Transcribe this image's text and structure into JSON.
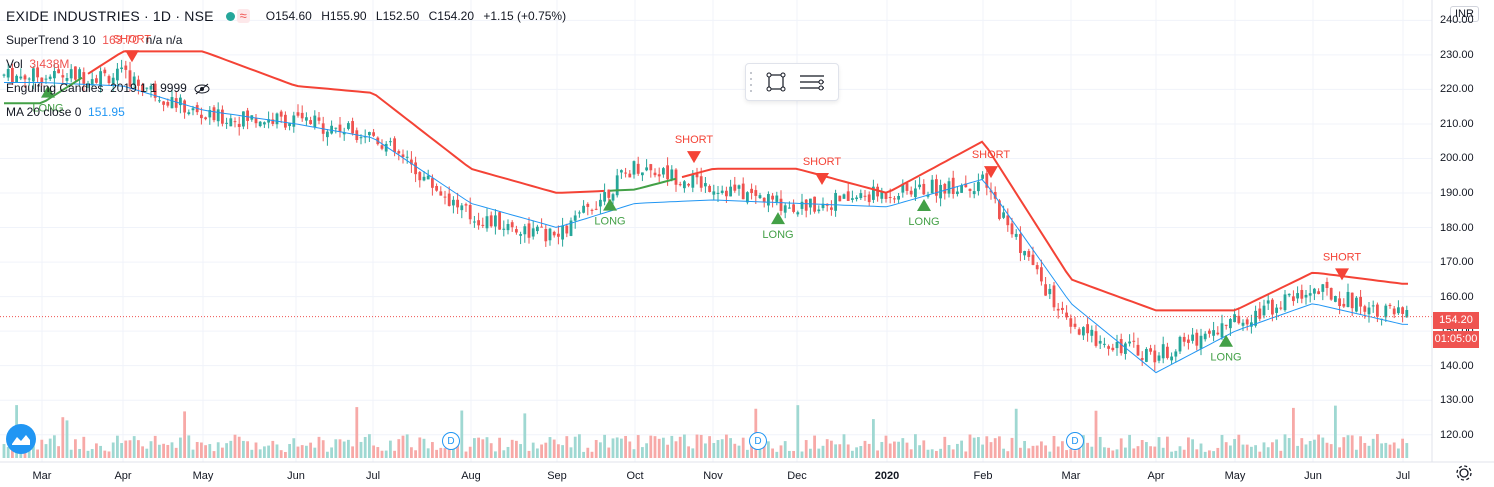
{
  "header": {
    "symbol": "EXIDE INDUSTRIES · 1D · NSE",
    "open": "O154.60",
    "high": "H155.90",
    "low": "L152.50",
    "close": "C154.20",
    "change": "+1.15 (+0.75%)"
  },
  "indicators": {
    "supertrend": {
      "name": "SuperTrend 3 10",
      "value": "163.70",
      "extra": "n/a n/a"
    },
    "volume": {
      "name": "Vol",
      "value": "3.438M"
    },
    "engulfing": {
      "name": "Engulfing Candles",
      "value": "2019 1 1 9999"
    },
    "ma": {
      "name": "MA 20 close 0",
      "value": "151.95"
    }
  },
  "price_axis": {
    "currency": "INR",
    "ticks": [
      "240.00",
      "230.00",
      "220.00",
      "210.00",
      "200.00",
      "190.00",
      "180.00",
      "170.00",
      "160.00",
      "150.00",
      "140.00",
      "130.00",
      "120.00"
    ],
    "last_price": "154.20",
    "countdown": "01:05:00"
  },
  "time_axis": {
    "labels": [
      "Mar",
      "Apr",
      "May",
      "Jun",
      "Jul",
      "Aug",
      "Sep",
      "Oct",
      "Nov",
      "Dec",
      "2020",
      "Feb",
      "Mar",
      "Apr",
      "May",
      "Jun",
      "Jul"
    ]
  },
  "dividend_marks": [
    "D",
    "D",
    "D"
  ],
  "toolbar": {
    "rect_tool": "rectangle-tool-icon",
    "menu_tool": "lines-menu-icon"
  },
  "colors": {
    "up": "#26a69a",
    "down": "#ef5350",
    "supertrend_up": "#43a047",
    "supertrend_down": "#f44336",
    "ma": "#2196f3"
  },
  "chart_data": {
    "type": "candlestick",
    "title": "EXIDE INDUSTRIES · 1D · NSE",
    "ylim": [
      115,
      243
    ],
    "series": [
      {
        "name": "price",
        "x": [
          "Mar",
          "Apr",
          "May",
          "Jun",
          "Jul",
          "Aug",
          "Sep",
          "Oct",
          "Nov",
          "Dec",
          "2020",
          "Feb",
          "Mar",
          "Apr",
          "May",
          "Jun",
          "Jul"
        ],
        "values": [
          224,
          224,
          212,
          211,
          207,
          183,
          177,
          198,
          192,
          186,
          190,
          193,
          150,
          143,
          153,
          162,
          154.2
        ]
      },
      {
        "name": "SuperTrend 3 10",
        "x": [
          "Mar",
          "Apr",
          "May",
          "Jun",
          "Jul",
          "Aug",
          "Sep",
          "Oct",
          "Nov",
          "Dec",
          "2020",
          "Feb",
          "Mar",
          "Apr",
          "May",
          "Jun",
          "Jul"
        ],
        "values": [
          216,
          231,
          231,
          221,
          219,
          197,
          190,
          191,
          197,
          197,
          190,
          205,
          165,
          156,
          156,
          167,
          163.7
        ]
      },
      {
        "name": "MA 20 close 0",
        "x": [
          "Mar",
          "Apr",
          "May",
          "Jun",
          "Jul",
          "Aug",
          "Sep",
          "Oct",
          "Nov",
          "Dec",
          "2020",
          "Feb",
          "Mar",
          "Apr",
          "May",
          "Jun",
          "Jul"
        ],
        "values": [
          222,
          221,
          214,
          210,
          206,
          187,
          180,
          187,
          188,
          187,
          186,
          194,
          158,
          138,
          150,
          158,
          151.95
        ]
      }
    ],
    "signals": [
      {
        "label": "LONG",
        "x": "Mar"
      },
      {
        "label": "SHORT",
        "x": "Apr"
      },
      {
        "label": "LONG",
        "x": "Sep"
      },
      {
        "label": "SHORT",
        "x": "Oct"
      },
      {
        "label": "LONG",
        "x": "Nov"
      },
      {
        "label": "SHORT",
        "x": "Dec"
      },
      {
        "label": "LONG",
        "x": "2020"
      },
      {
        "label": "SHORT",
        "x": "Feb"
      },
      {
        "label": "LONG",
        "x": "May"
      },
      {
        "label": "SHORT",
        "x": "Jun"
      }
    ]
  }
}
